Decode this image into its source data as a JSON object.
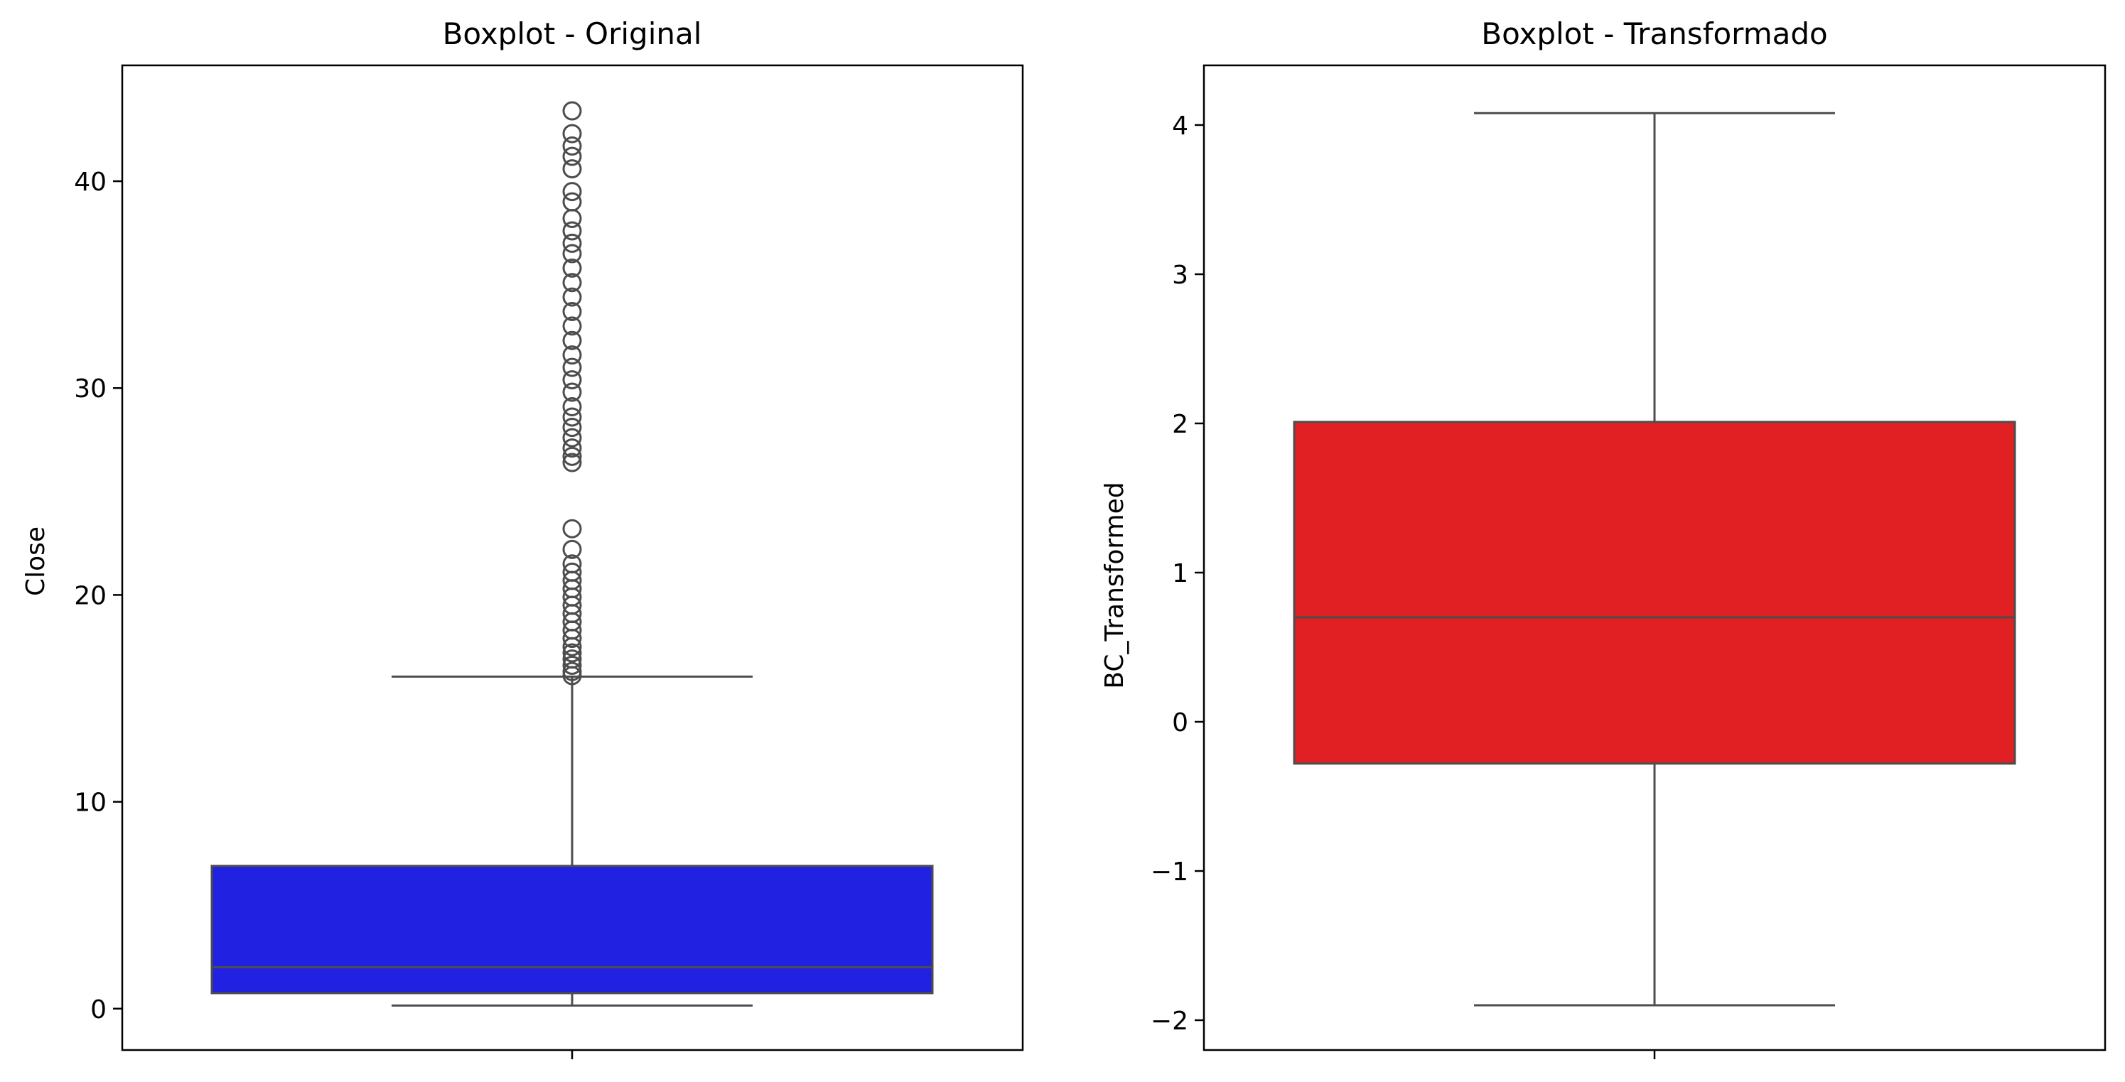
{
  "chart_data": [
    {
      "type": "boxplot",
      "title": "Boxplot - Original",
      "xlabel": "",
      "ylabel": "Close",
      "ylim": [
        -2.0,
        45.6
      ],
      "yticks": [
        0,
        10,
        20,
        30,
        40
      ],
      "ytick_labels": [
        "0",
        "10",
        "20",
        "30",
        "40"
      ],
      "box_color": "#2121e1",
      "stats": {
        "whisker_low": 0.15,
        "q1": 0.75,
        "median": 2.0,
        "q3": 6.9,
        "whisker_high": 16.05
      },
      "outliers": [
        16.1,
        16.3,
        16.6,
        16.9,
        17.2,
        17.5,
        17.9,
        18.3,
        18.7,
        19.1,
        19.5,
        19.9,
        20.3,
        20.7,
        21.1,
        21.5,
        22.2,
        23.2,
        26.4,
        26.7,
        27.1,
        27.6,
        28.1,
        28.6,
        29.1,
        29.8,
        30.4,
        31.0,
        31.6,
        32.3,
        33.0,
        33.7,
        34.4,
        35.1,
        35.8,
        36.5,
        37.0,
        37.6,
        38.2,
        39.0,
        39.5,
        40.6,
        41.2,
        41.7,
        42.3,
        43.4
      ]
    },
    {
      "type": "boxplot",
      "title": "Boxplot - Transformado",
      "xlabel": "",
      "ylabel": "BC_Transformed",
      "ylim": [
        -2.2,
        4.4
      ],
      "yticks": [
        -2,
        -1,
        0,
        1,
        2,
        3,
        4
      ],
      "ytick_labels": [
        "−2",
        "−1",
        "0",
        "1",
        "2",
        "3",
        "4"
      ],
      "box_color": "#e02022",
      "stats": {
        "whisker_low": -1.9,
        "q1": -0.28,
        "median": 0.7,
        "q3": 2.01,
        "whisker_high": 4.08
      },
      "outliers": []
    }
  ]
}
